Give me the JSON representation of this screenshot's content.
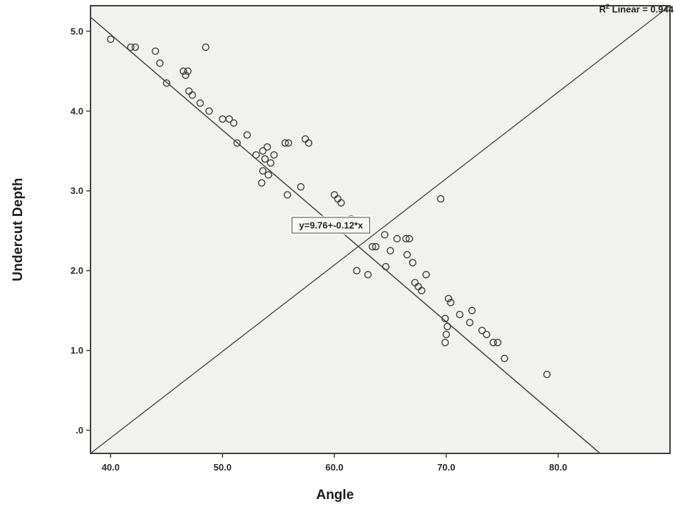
{
  "figure": {
    "background": "#ffffff"
  },
  "chart_data": {
    "type": "scatter",
    "title": "",
    "xlabel": "Angle",
    "ylabel": "Undercut Depth",
    "x_ticks": [
      40,
      50,
      60,
      70,
      80
    ],
    "x_tick_labels": [
      "40.0",
      "50.0",
      "60.0",
      "70.0",
      "80.0"
    ],
    "y_ticks": [
      0,
      1,
      2,
      3,
      4,
      5
    ],
    "y_tick_labels": [
      ".0",
      "1.0",
      "2.0",
      "3.0",
      "4.0",
      "5.0"
    ],
    "xlim": [
      38.2,
      90.0
    ],
    "ylim": [
      -0.29,
      5.32
    ],
    "grid": false,
    "legend": "none",
    "plot_bg": "#f1f1ee",
    "frame_color": "#3f3f3f",
    "line_color": "#4a4a4a",
    "point_color": "#3d3d3d",
    "points": [
      [
        40.0,
        4.9
      ],
      [
        41.8,
        4.8
      ],
      [
        42.2,
        4.8
      ],
      [
        44.0,
        4.75
      ],
      [
        44.4,
        4.6
      ],
      [
        45.0,
        4.35
      ],
      [
        46.5,
        4.5
      ],
      [
        46.9,
        4.5
      ],
      [
        46.7,
        4.45
      ],
      [
        47.0,
        4.25
      ],
      [
        47.3,
        4.2
      ],
      [
        48.5,
        4.8
      ],
      [
        48.0,
        4.1
      ],
      [
        48.8,
        4.0
      ],
      [
        50.0,
        3.9
      ],
      [
        50.6,
        3.9
      ],
      [
        51.0,
        3.85
      ],
      [
        51.3,
        3.6
      ],
      [
        52.2,
        3.7
      ],
      [
        53.0,
        3.45
      ],
      [
        53.6,
        3.5
      ],
      [
        54.0,
        3.55
      ],
      [
        53.8,
        3.4
      ],
      [
        54.3,
        3.35
      ],
      [
        54.6,
        3.45
      ],
      [
        53.6,
        3.25
      ],
      [
        54.1,
        3.2
      ],
      [
        53.5,
        3.1
      ],
      [
        55.6,
        3.6
      ],
      [
        55.9,
        3.6
      ],
      [
        57.4,
        3.65
      ],
      [
        57.7,
        3.6
      ],
      [
        55.8,
        2.95
      ],
      [
        57.0,
        3.05
      ],
      [
        60.0,
        2.95
      ],
      [
        60.3,
        2.9
      ],
      [
        60.6,
        2.85
      ],
      [
        61.5,
        2.65
      ],
      [
        63.4,
        2.3
      ],
      [
        63.7,
        2.3
      ],
      [
        64.5,
        2.45
      ],
      [
        65.6,
        2.4
      ],
      [
        66.4,
        2.4
      ],
      [
        66.7,
        2.4
      ],
      [
        65.0,
        2.25
      ],
      [
        66.5,
        2.2
      ],
      [
        67.0,
        2.1
      ],
      [
        62.0,
        2.0
      ],
      [
        63.0,
        1.95
      ],
      [
        64.6,
        2.05
      ],
      [
        67.2,
        1.85
      ],
      [
        67.5,
        1.8
      ],
      [
        67.8,
        1.75
      ],
      [
        68.2,
        1.95
      ],
      [
        69.5,
        2.9
      ],
      [
        70.2,
        1.65
      ],
      [
        70.4,
        1.6
      ],
      [
        69.9,
        1.4
      ],
      [
        70.1,
        1.3
      ],
      [
        70.0,
        1.2
      ],
      [
        69.9,
        1.1
      ],
      [
        71.2,
        1.45
      ],
      [
        72.3,
        1.5
      ],
      [
        72.1,
        1.35
      ],
      [
        73.2,
        1.25
      ],
      [
        73.6,
        1.2
      ],
      [
        74.2,
        1.1
      ],
      [
        74.6,
        1.1
      ],
      [
        75.2,
        0.9
      ],
      [
        79.0,
        0.7
      ]
    ],
    "regression": {
      "slope": -0.12,
      "intercept": 9.76,
      "equation_label": "y=9.76+-0.12*x",
      "label_x": 59.7,
      "label_y": 2.57
    },
    "reference_line": "diagonal from bottom-left corner to top-right corner",
    "r2": {
      "prefix": "R",
      "superscript": "2",
      "suffix": " Linear = 0.944"
    }
  }
}
